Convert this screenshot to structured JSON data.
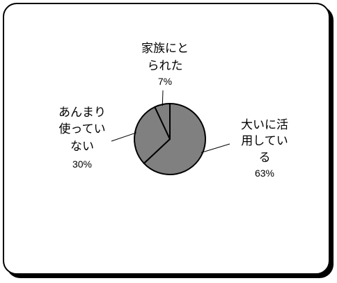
{
  "chart_data": {
    "type": "pie",
    "title": "",
    "slices": [
      {
        "label_lines": [
          "大いに活",
          "用してい",
          "る"
        ],
        "value": 63,
        "value_label": "63%",
        "color": "#808080"
      },
      {
        "label_lines": [
          "あんまり",
          "使ってい",
          "ない"
        ],
        "value": 30,
        "value_label": "30%",
        "color": "#808080"
      },
      {
        "label_lines": [
          "家族にと",
          "られた"
        ],
        "value": 7,
        "value_label": "7%",
        "color": "#808080"
      }
    ],
    "legend": "none",
    "labels": "outside-with-leader-lines"
  }
}
